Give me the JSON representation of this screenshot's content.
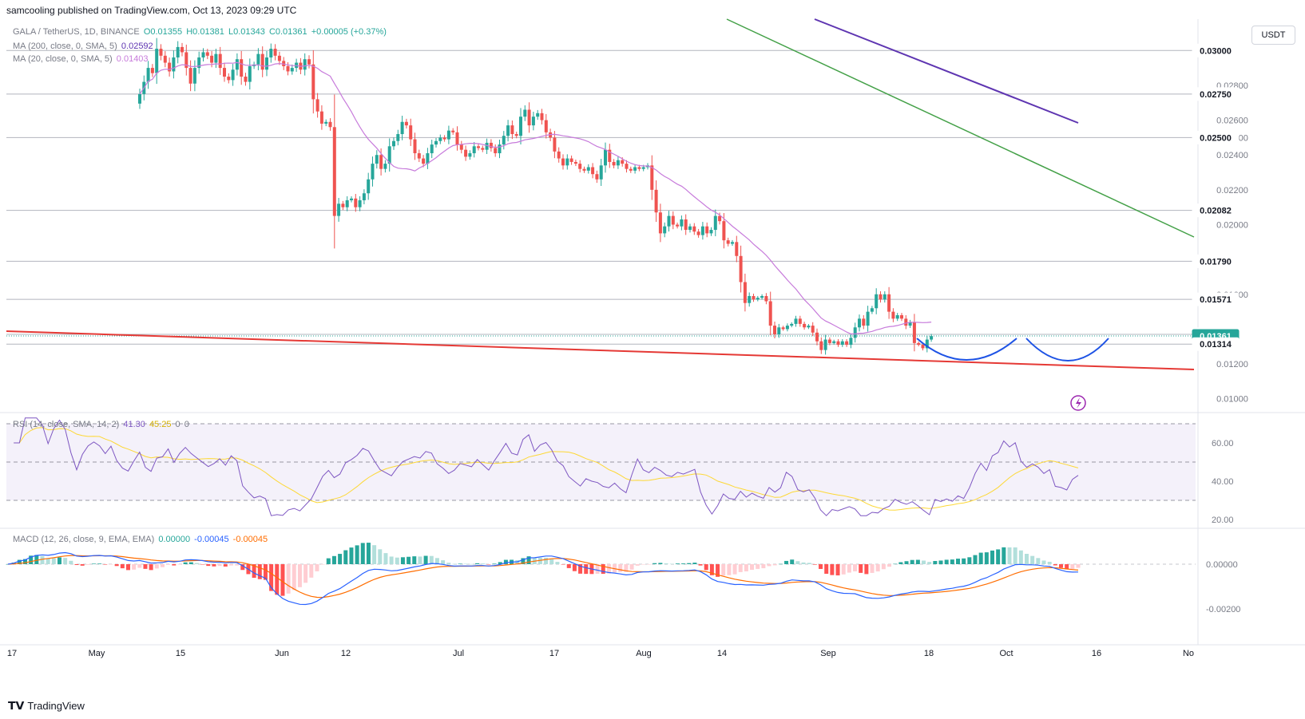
{
  "header": {
    "text": "samcooling published on TradingView.com, Oct 13, 2023 09:29 UTC"
  },
  "symbol": {
    "name": "GALA / TetherUS, 1D, BINANCE",
    "o": "O0.01355",
    "h": "H0.01381",
    "l": "L0.01343",
    "c": "C0.01361",
    "chg": "+0.00005 (+0.37%)",
    "ma200": "MA (200, close, 0, SMA, 5)",
    "ma200_val": "0.02592",
    "ma20": "MA (20, close, 0, SMA, 5)",
    "ma20_val": "0.01403"
  },
  "rsi_legend": {
    "label": "RSI (14, close, SMA, 14, 2)",
    "rsi": "41.30",
    "sma": "45.25",
    "zero1": "0",
    "zero2": "0"
  },
  "macd_legend": {
    "label": "MACD (12, 26, close, 9, EMA, EMA)",
    "hist": "0.00000",
    "macd": "-0.00045",
    "signal": "-0.00045"
  },
  "unit": "USDT",
  "footer": {
    "brand": "TradingView"
  },
  "colors": {
    "up": "#26a69a",
    "down": "#ef5350",
    "ma20": "#c77bdb",
    "ma200": "#5e35b1",
    "green_line": "#43a047",
    "red_line": "#e53935",
    "pattern": "#1e53e5",
    "rsi": "#7e57c2",
    "rsi_sma": "#fdd835",
    "macd": "#2962ff",
    "signal": "#ff6d00"
  },
  "chart_data": {
    "type": "candlestick",
    "price_axis_ticks": [
      "0.02800",
      "0.02600",
      "0.02500",
      "0.02400",
      "0.02200",
      "0.02000",
      "0.01600",
      "0.01200",
      "0.01000"
    ],
    "price_levels": [
      "0.03000",
      "0.02750",
      "0.02500",
      "0.02082",
      "0.01790",
      "0.01571",
      "0.01370",
      "0.01361",
      "0.01314"
    ],
    "rsi_ticks": [
      "60.00",
      "40.00",
      "20.00"
    ],
    "macd_ticks": [
      "0.00000",
      "-0.00200"
    ],
    "time_ticks": [
      "17",
      "May",
      "15",
      "Jun",
      "12",
      "Jul",
      "17",
      "Aug",
      "14",
      "Sep",
      "18",
      "Oct",
      "16",
      "No"
    ],
    "closes": [
      0.0275,
      0.0282,
      0.029,
      0.0287,
      0.0301,
      0.0297,
      0.0293,
      0.0288,
      0.0296,
      0.0302,
      0.0299,
      0.029,
      0.0281,
      0.029,
      0.0296,
      0.0299,
      0.0297,
      0.0293,
      0.0298,
      0.029,
      0.0285,
      0.0283,
      0.0289,
      0.0295,
      0.0285,
      0.0282,
      0.0291,
      0.0292,
      0.0298,
      0.0289,
      0.0296,
      0.0301,
      0.0297,
      0.0294,
      0.0291,
      0.0288,
      0.029,
      0.0293,
      0.0289,
      0.0295,
      0.0292,
      0.0272,
      0.0265,
      0.0258,
      0.0259,
      0.0256,
      0.0205,
      0.0212,
      0.021,
      0.0214,
      0.0215,
      0.021,
      0.0214,
      0.0218,
      0.0226,
      0.0235,
      0.024,
      0.0232,
      0.0235,
      0.0245,
      0.0248,
      0.0252,
      0.0259,
      0.0257,
      0.0249,
      0.0241,
      0.0238,
      0.0235,
      0.0241,
      0.0246,
      0.0248,
      0.025,
      0.0249,
      0.0254,
      0.0253,
      0.0246,
      0.0243,
      0.0239,
      0.0241,
      0.0245,
      0.0244,
      0.0243,
      0.0247,
      0.0244,
      0.0241,
      0.0246,
      0.0251,
      0.0257,
      0.0252,
      0.0251,
      0.0262,
      0.0266,
      0.0257,
      0.0262,
      0.0264,
      0.026,
      0.0253,
      0.025,
      0.0242,
      0.0238,
      0.0234,
      0.0238,
      0.0236,
      0.0235,
      0.0232,
      0.0231,
      0.0233,
      0.0229,
      0.0226,
      0.0234,
      0.0243,
      0.0236,
      0.0234,
      0.0237,
      0.0235,
      0.0232,
      0.0231,
      0.0233,
      0.0232,
      0.0233,
      0.0234,
      0.022,
      0.0207,
      0.0195,
      0.0199,
      0.0205,
      0.02,
      0.0199,
      0.0203,
      0.0197,
      0.0199,
      0.0196,
      0.0194,
      0.0199,
      0.0195,
      0.0197,
      0.0205,
      0.0202,
      0.0191,
      0.0189,
      0.019,
      0.0182,
      0.0167,
      0.0155,
      0.0159,
      0.0157,
      0.0158,
      0.0159,
      0.0156,
      0.0142,
      0.0137,
      0.0141,
      0.014,
      0.0142,
      0.0143,
      0.0146,
      0.0143,
      0.0141,
      0.0142,
      0.0138,
      0.0133,
      0.0128,
      0.0134,
      0.0132,
      0.0133,
      0.0131,
      0.0133,
      0.0131,
      0.0135,
      0.0141,
      0.0146,
      0.0142,
      0.015,
      0.0152,
      0.016,
      0.0157,
      0.016,
      0.015,
      0.0146,
      0.0148,
      0.0146,
      0.0142,
      0.0144,
      0.0132,
      0.0131,
      0.0129,
      0.0134,
      0.0136
    ]
  }
}
